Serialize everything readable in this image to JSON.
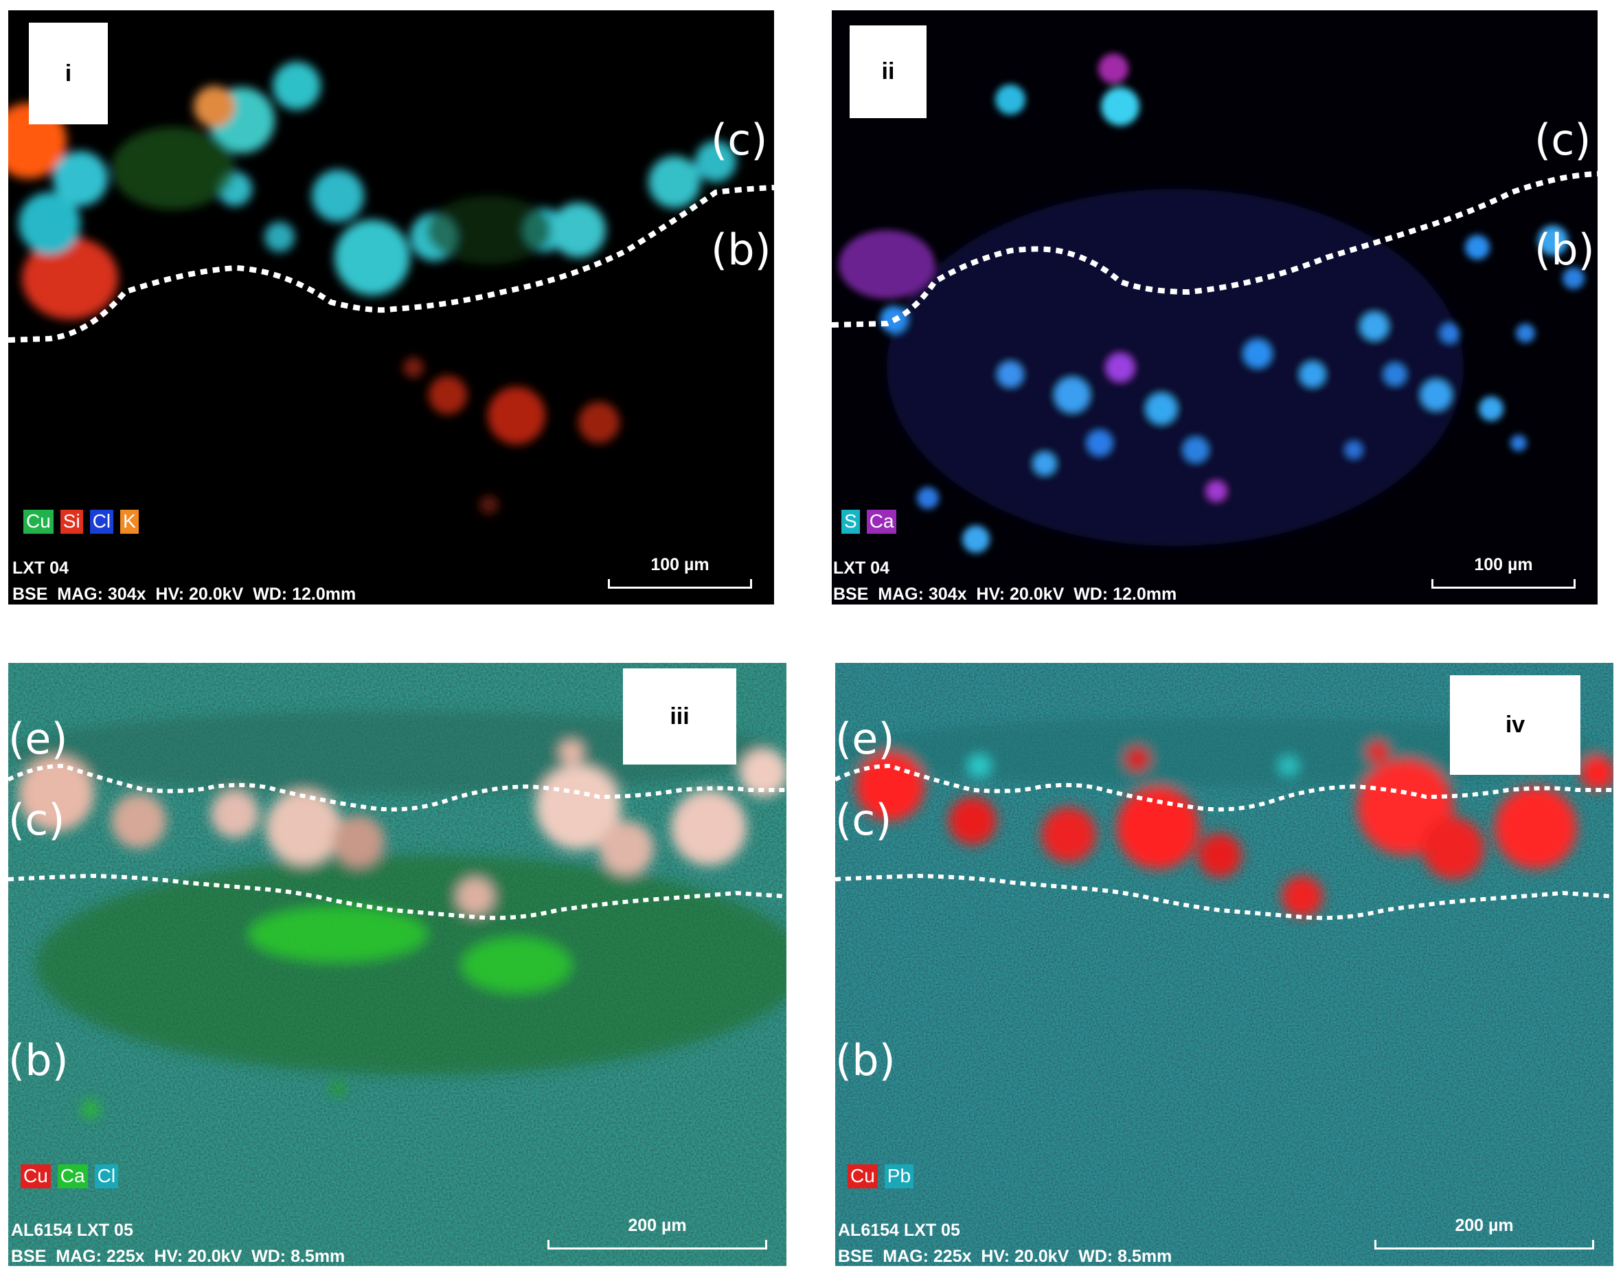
{
  "panels": [
    {
      "tag": "i",
      "layers": [
        "(c)",
        "(b)"
      ],
      "legend": [
        {
          "label": "Cu",
          "color": "#22b24c"
        },
        {
          "label": "Si",
          "color": "#e0301e"
        },
        {
          "label": "Cl",
          "color": "#1a3fd6"
        },
        {
          "label": "K",
          "color": "#f08a24"
        }
      ],
      "sample": "LXT 04",
      "params": "BSE  MAG: 304x  HV: 20.0kV  WD: 12.0mm",
      "scale": "100 µm"
    },
    {
      "tag": "ii",
      "layers": [
        "(c)",
        "(b)"
      ],
      "legend": [
        {
          "label": "S",
          "color": "#17b5c4"
        },
        {
          "label": "Ca",
          "color": "#9a2ab8"
        }
      ],
      "sample": "LXT 04",
      "params": "BSE  MAG: 304x  HV: 20.0kV  WD: 12.0mm",
      "scale": "100 µm"
    },
    {
      "tag": "iii",
      "layers": [
        "(e)",
        "(c)",
        "(b)"
      ],
      "legend": [
        {
          "label": "Cu",
          "color": "#e0201e"
        },
        {
          "label": "Ca",
          "color": "#22c032"
        },
        {
          "label": "Cl",
          "color": "#1aa8b8"
        }
      ],
      "sample": "AL6154 LXT 05",
      "params": "BSE  MAG: 225x  HV: 20.0kV  WD: 8.5mm",
      "scale": "200 µm"
    },
    {
      "tag": "iv",
      "layers": [
        "(e)",
        "(c)",
        "(b)"
      ],
      "legend": [
        {
          "label": "Cu",
          "color": "#e0201e"
        },
        {
          "label": "Pb",
          "color": "#1aa8b8"
        }
      ],
      "sample": "AL6154 LXT 05",
      "params": "BSE  MAG: 225x  HV: 20.0kV  WD: 8.5mm",
      "scale": "200 µm"
    }
  ]
}
